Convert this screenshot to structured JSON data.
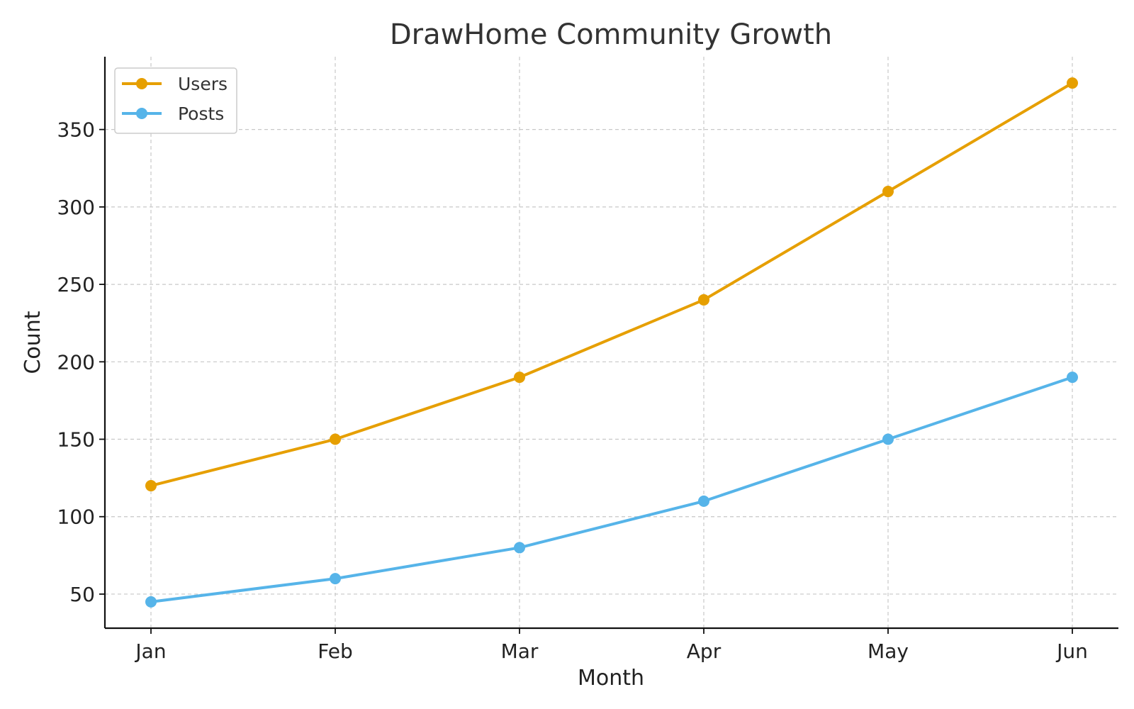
{
  "chart_data": {
    "type": "line",
    "title": "DrawHome Community Growth",
    "xlabel": "Month",
    "ylabel": "Count",
    "categories": [
      "Jan",
      "Feb",
      "Mar",
      "Apr",
      "May",
      "Jun"
    ],
    "ylim": [
      28,
      397
    ],
    "yticks": [
      50,
      100,
      150,
      200,
      250,
      300,
      350
    ],
    "grid": true,
    "legend_position": "top-left",
    "series": [
      {
        "name": "Users",
        "color": "#E69F00",
        "values": [
          120,
          150,
          190,
          240,
          310,
          380
        ]
      },
      {
        "name": "Posts",
        "color": "#56B4E9",
        "values": [
          45,
          60,
          80,
          110,
          150,
          190
        ]
      }
    ]
  }
}
